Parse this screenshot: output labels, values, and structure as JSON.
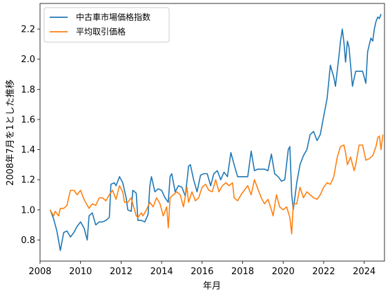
{
  "chart_data": {
    "type": "line",
    "title": "",
    "xlabel": "年月",
    "ylabel": "2008年7月を1とした推移",
    "xlim": [
      2008,
      2025
    ],
    "ylim": [
      0.66,
      2.37
    ],
    "x_ticks": [
      2008,
      2010,
      2012,
      2014,
      2016,
      2018,
      2020,
      2022,
      2024
    ],
    "y_ticks": [
      0.8,
      1.0,
      1.2,
      1.4,
      1.6,
      1.8,
      2.0,
      2.2
    ],
    "y_tick_labels": [
      "0.8",
      "1.0",
      "1.2",
      "1.4",
      "1.6",
      "1.8",
      "2.0",
      "2.2"
    ],
    "grid": false,
    "legend_position": "upper-left",
    "series": [
      {
        "name": "中古車市場価格指数",
        "color": "#1f77b4",
        "points": [
          [
            2008.5,
            1.0
          ],
          [
            2008.67,
            0.94
          ],
          [
            2008.83,
            0.86
          ],
          [
            2009.0,
            0.73
          ],
          [
            2009.17,
            0.85
          ],
          [
            2009.33,
            0.86
          ],
          [
            2009.5,
            0.82
          ],
          [
            2009.67,
            0.85
          ],
          [
            2009.83,
            0.89
          ],
          [
            2010.0,
            0.92
          ],
          [
            2010.17,
            0.88
          ],
          [
            2010.33,
            0.8
          ],
          [
            2010.42,
            0.96
          ],
          [
            2010.58,
            0.98
          ],
          [
            2010.75,
            0.9
          ],
          [
            2010.92,
            0.92
          ],
          [
            2011.08,
            0.92
          ],
          [
            2011.25,
            0.93
          ],
          [
            2011.42,
            0.95
          ],
          [
            2011.5,
            1.17
          ],
          [
            2011.67,
            1.18
          ],
          [
            2011.75,
            1.16
          ],
          [
            2011.92,
            1.22
          ],
          [
            2012.08,
            1.18
          ],
          [
            2012.25,
            1.08
          ],
          [
            2012.33,
            1.0
          ],
          [
            2012.5,
            0.99
          ],
          [
            2012.58,
            1.13
          ],
          [
            2012.75,
            1.11
          ],
          [
            2012.83,
            0.93
          ],
          [
            2013.0,
            0.93
          ],
          [
            2013.17,
            0.92
          ],
          [
            2013.33,
            0.97
          ],
          [
            2013.42,
            1.16
          ],
          [
            2013.5,
            1.22
          ],
          [
            2013.67,
            1.12
          ],
          [
            2013.83,
            1.14
          ],
          [
            2014.0,
            1.13
          ],
          [
            2014.17,
            1.08
          ],
          [
            2014.33,
            1.05
          ],
          [
            2014.42,
            1.22
          ],
          [
            2014.5,
            1.24
          ],
          [
            2014.67,
            1.12
          ],
          [
            2014.83,
            1.16
          ],
          [
            2015.0,
            1.15
          ],
          [
            2015.17,
            1.09
          ],
          [
            2015.33,
            1.29
          ],
          [
            2015.42,
            1.3
          ],
          [
            2015.58,
            1.2
          ],
          [
            2015.75,
            1.12
          ],
          [
            2015.92,
            1.23
          ],
          [
            2016.08,
            1.24
          ],
          [
            2016.25,
            1.24
          ],
          [
            2016.42,
            1.16
          ],
          [
            2016.58,
            1.24
          ],
          [
            2016.75,
            1.26
          ],
          [
            2016.92,
            1.2
          ],
          [
            2017.08,
            1.25
          ],
          [
            2017.25,
            1.22
          ],
          [
            2017.42,
            1.38
          ],
          [
            2017.58,
            1.3
          ],
          [
            2017.75,
            1.22
          ],
          [
            2017.92,
            1.22
          ],
          [
            2018.08,
            1.22
          ],
          [
            2018.25,
            1.22
          ],
          [
            2018.42,
            1.39
          ],
          [
            2018.58,
            1.26
          ],
          [
            2018.75,
            1.27
          ],
          [
            2018.92,
            1.27
          ],
          [
            2019.08,
            1.27
          ],
          [
            2019.25,
            1.26
          ],
          [
            2019.42,
            1.37
          ],
          [
            2019.58,
            1.24
          ],
          [
            2019.75,
            1.22
          ],
          [
            2019.92,
            1.19
          ],
          [
            2020.08,
            1.2
          ],
          [
            2020.25,
            1.4
          ],
          [
            2020.33,
            1.42
          ],
          [
            2020.42,
            1.1
          ],
          [
            2020.5,
            1.0
          ],
          [
            2020.67,
            1.18
          ],
          [
            2020.83,
            1.3
          ],
          [
            2021.0,
            1.36
          ],
          [
            2021.17,
            1.4
          ],
          [
            2021.33,
            1.5
          ],
          [
            2021.5,
            1.52
          ],
          [
            2021.67,
            1.46
          ],
          [
            2021.83,
            1.5
          ],
          [
            2022.0,
            1.62
          ],
          [
            2022.17,
            1.74
          ],
          [
            2022.33,
            1.96
          ],
          [
            2022.5,
            1.88
          ],
          [
            2022.58,
            1.82
          ],
          [
            2022.75,
            2.02
          ],
          [
            2022.83,
            2.12
          ],
          [
            2022.92,
            2.2
          ],
          [
            2023.0,
            2.11
          ],
          [
            2023.08,
            1.98
          ],
          [
            2023.17,
            2.12
          ],
          [
            2023.25,
            2.08
          ],
          [
            2023.42,
            1.82
          ],
          [
            2023.58,
            1.92
          ],
          [
            2023.75,
            1.92
          ],
          [
            2023.92,
            1.92
          ],
          [
            2024.08,
            1.84
          ],
          [
            2024.17,
            2.05
          ],
          [
            2024.33,
            2.14
          ],
          [
            2024.42,
            2.12
          ],
          [
            2024.5,
            2.2
          ],
          [
            2024.58,
            2.25
          ],
          [
            2024.67,
            2.28
          ],
          [
            2024.75,
            2.27
          ],
          [
            2024.83,
            2.3
          ]
        ]
      },
      {
        "name": "平均取引価格",
        "color": "#ff7f0e",
        "points": [
          [
            2008.5,
            1.0
          ],
          [
            2008.58,
            0.98
          ],
          [
            2008.67,
            0.96
          ],
          [
            2008.75,
            0.99
          ],
          [
            2008.92,
            0.96
          ],
          [
            2009.0,
            1.01
          ],
          [
            2009.17,
            1.01
          ],
          [
            2009.33,
            1.03
          ],
          [
            2009.5,
            1.13
          ],
          [
            2009.67,
            1.13
          ],
          [
            2009.83,
            1.1
          ],
          [
            2010.0,
            1.13
          ],
          [
            2010.17,
            1.07
          ],
          [
            2010.33,
            1.03
          ],
          [
            2010.42,
            1.01
          ],
          [
            2010.58,
            1.04
          ],
          [
            2010.75,
            1.03
          ],
          [
            2010.92,
            1.08
          ],
          [
            2011.08,
            1.08
          ],
          [
            2011.25,
            1.06
          ],
          [
            2011.42,
            1.1
          ],
          [
            2011.58,
            1.13
          ],
          [
            2011.75,
            1.07
          ],
          [
            2011.92,
            1.16
          ],
          [
            2012.08,
            1.12
          ],
          [
            2012.17,
            1.05
          ],
          [
            2012.33,
            1.05
          ],
          [
            2012.5,
            1.08
          ],
          [
            2012.58,
            1.04
          ],
          [
            2012.75,
            0.96
          ],
          [
            2012.83,
            0.95
          ],
          [
            2013.0,
            0.98
          ],
          [
            2013.08,
            0.96
          ],
          [
            2013.25,
            1.0
          ],
          [
            2013.42,
            1.05
          ],
          [
            2013.58,
            1.02
          ],
          [
            2013.75,
            1.08
          ],
          [
            2013.92,
            1.04
          ],
          [
            2014.08,
            0.96
          ],
          [
            2014.25,
            1.02
          ],
          [
            2014.33,
            0.88
          ],
          [
            2014.42,
            1.08
          ],
          [
            2014.58,
            1.1
          ],
          [
            2014.75,
            1.12
          ],
          [
            2014.92,
            1.1
          ],
          [
            2015.08,
            1.02
          ],
          [
            2015.25,
            1.15
          ],
          [
            2015.33,
            1.05
          ],
          [
            2015.5,
            1.12
          ],
          [
            2015.67,
            1.06
          ],
          [
            2015.83,
            1.08
          ],
          [
            2016.0,
            1.15
          ],
          [
            2016.17,
            1.17
          ],
          [
            2016.33,
            1.13
          ],
          [
            2016.5,
            1.12
          ],
          [
            2016.67,
            1.2
          ],
          [
            2016.83,
            1.12
          ],
          [
            2017.0,
            1.16
          ],
          [
            2017.17,
            1.18
          ],
          [
            2017.33,
            1.16
          ],
          [
            2017.5,
            1.18
          ],
          [
            2017.58,
            1.08
          ],
          [
            2017.75,
            1.06
          ],
          [
            2017.92,
            1.1
          ],
          [
            2018.08,
            1.13
          ],
          [
            2018.25,
            1.16
          ],
          [
            2018.42,
            1.1
          ],
          [
            2018.58,
            1.2
          ],
          [
            2018.75,
            1.14
          ],
          [
            2018.92,
            1.08
          ],
          [
            2019.08,
            1.04
          ],
          [
            2019.25,
            1.07
          ],
          [
            2019.42,
            1.0
          ],
          [
            2019.5,
            0.96
          ],
          [
            2019.67,
            1.1
          ],
          [
            2019.83,
            1.02
          ],
          [
            2020.0,
            1.0
          ],
          [
            2020.17,
            1.02
          ],
          [
            2020.33,
            0.95
          ],
          [
            2020.42,
            0.84
          ],
          [
            2020.5,
            1.04
          ],
          [
            2020.67,
            1.04
          ],
          [
            2020.83,
            1.15
          ],
          [
            2021.0,
            1.08
          ],
          [
            2021.17,
            1.12
          ],
          [
            2021.33,
            1.1
          ],
          [
            2021.5,
            1.08
          ],
          [
            2021.67,
            1.07
          ],
          [
            2021.83,
            1.1
          ],
          [
            2022.0,
            1.15
          ],
          [
            2022.17,
            1.18
          ],
          [
            2022.33,
            1.17
          ],
          [
            2022.5,
            1.22
          ],
          [
            2022.67,
            1.35
          ],
          [
            2022.83,
            1.42
          ],
          [
            2023.0,
            1.43
          ],
          [
            2023.08,
            1.38
          ],
          [
            2023.17,
            1.3
          ],
          [
            2023.33,
            1.35
          ],
          [
            2023.5,
            1.26
          ],
          [
            2023.58,
            1.3
          ],
          [
            2023.75,
            1.43
          ],
          [
            2023.92,
            1.43
          ],
          [
            2024.08,
            1.33
          ],
          [
            2024.25,
            1.34
          ],
          [
            2024.42,
            1.36
          ],
          [
            2024.58,
            1.42
          ],
          [
            2024.67,
            1.48
          ],
          [
            2024.75,
            1.49
          ],
          [
            2024.83,
            1.4
          ],
          [
            2024.92,
            1.5
          ]
        ]
      }
    ]
  }
}
